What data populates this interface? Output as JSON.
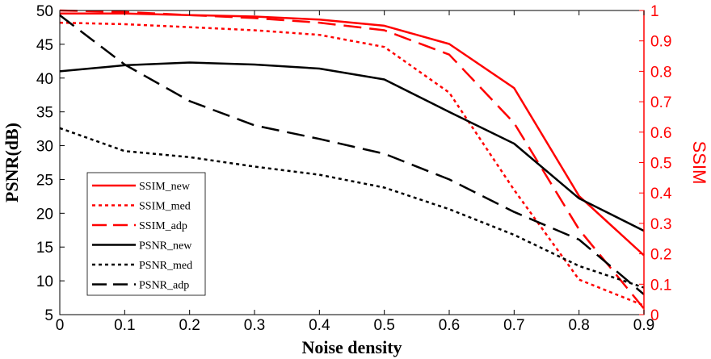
{
  "chart_data": {
    "type": "line",
    "title": "",
    "xlabel": "Noise density",
    "ylabel": "PSNR(dB)",
    "ylabel_right": "SSIM",
    "x": [
      0,
      0.1,
      0.2,
      0.3,
      0.4,
      0.5,
      0.6,
      0.7,
      0.8,
      0.9
    ],
    "xlim": [
      0,
      0.9
    ],
    "ylim": [
      5,
      50
    ],
    "ylim_right": [
      0,
      1
    ],
    "x_ticks": [
      "0",
      "0.1",
      "0.2",
      "0.3",
      "0.4",
      "0.5",
      "0.6",
      "0.7",
      "0.8",
      "0.9"
    ],
    "y_ticks": [
      "5",
      "10",
      "15",
      "20",
      "25",
      "30",
      "35",
      "40",
      "45",
      "50"
    ],
    "y_ticks_right": [
      "0",
      "0.1",
      "0.2",
      "0.3",
      "0.4",
      "0.5",
      "0.6",
      "0.7",
      "0.8",
      "0.9",
      "1"
    ],
    "grid": false,
    "legend_position": "lower-left",
    "colors": {
      "left_axis": "#000000",
      "right_axis": "#ff0000"
    },
    "series": [
      {
        "name": "SSIM_new",
        "axis": "right",
        "color": "#ff0000",
        "style": "solid",
        "values": [
          0.99,
          0.99,
          0.985,
          0.98,
          0.97,
          0.95,
          0.89,
          0.745,
          0.39,
          0.195
        ]
      },
      {
        "name": "SSIM_med",
        "axis": "right",
        "color": "#ff0000",
        "style": "dotted",
        "values": [
          0.96,
          0.955,
          0.945,
          0.935,
          0.92,
          0.88,
          0.73,
          0.41,
          0.115,
          0.03
        ]
      },
      {
        "name": "SSIM_adp",
        "axis": "right",
        "color": "#ff0000",
        "style": "dashed",
        "values": [
          1.0,
          0.995,
          0.985,
          0.975,
          0.96,
          0.935,
          0.855,
          0.63,
          0.28,
          0.02
        ]
      },
      {
        "name": "PSNR_new",
        "axis": "left",
        "color": "#000000",
        "style": "solid",
        "values": [
          41.0,
          41.9,
          42.3,
          42.0,
          41.4,
          39.8,
          35.0,
          30.3,
          22.2,
          17.4
        ]
      },
      {
        "name": "PSNR_med",
        "axis": "left",
        "color": "#000000",
        "style": "dotted",
        "values": [
          32.6,
          29.2,
          28.3,
          26.9,
          25.7,
          23.8,
          20.6,
          16.8,
          12.2,
          9.0
        ]
      },
      {
        "name": "PSNR_adp",
        "axis": "left",
        "color": "#000000",
        "style": "dashed",
        "values": [
          49.3,
          42.0,
          36.6,
          33.0,
          31.0,
          28.8,
          25.0,
          20.2,
          16.1,
          8.0
        ]
      }
    ]
  }
}
